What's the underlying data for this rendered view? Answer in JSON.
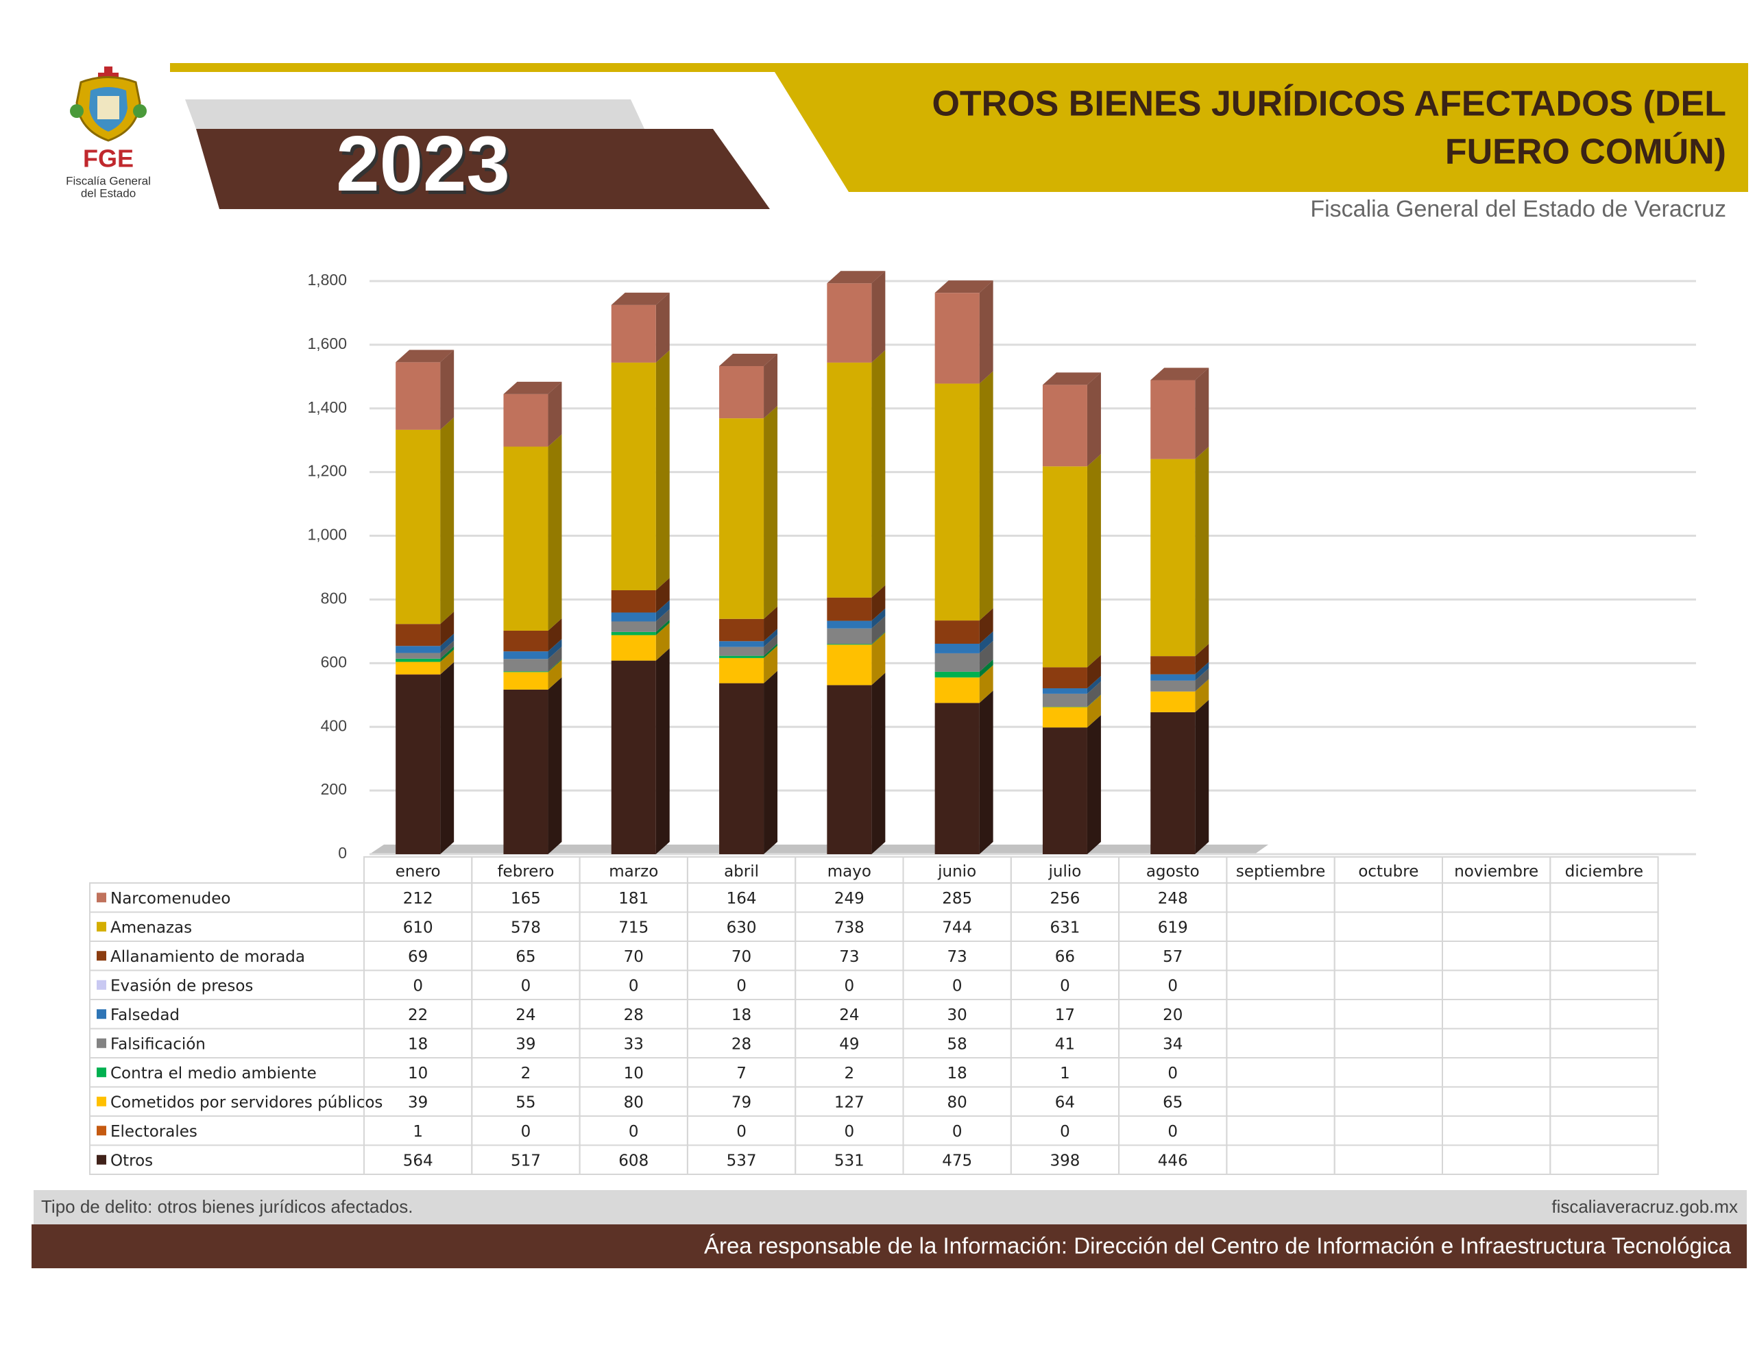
{
  "header": {
    "logo_abbr": "FGE",
    "logo_line1": "Fiscalía General",
    "logo_line2": "del Estado",
    "year": "2023",
    "title_lines": [
      "OTROS BIENES JURÍDICOS AFECTADOS (DEL",
      "FUERO COMÚN)"
    ],
    "subtitle": "Fiscalia General del Estado de Veracruz"
  },
  "chart_data": {
    "type": "bar",
    "stacked": true,
    "categories": [
      "enero",
      "febrero",
      "marzo",
      "abril",
      "mayo",
      "junio",
      "julio",
      "agosto",
      "septiembre",
      "octubre",
      "noviembre",
      "diciembre"
    ],
    "series": [
      {
        "name": "Narcomenudeo",
        "color": "#c0725c",
        "values": [
          212,
          165,
          181,
          164,
          249,
          285,
          256,
          248,
          null,
          null,
          null,
          null
        ]
      },
      {
        "name": "Amenazas",
        "color": "#d4ae00",
        "values": [
          610,
          578,
          715,
          630,
          738,
          744,
          631,
          619,
          null,
          null,
          null,
          null
        ]
      },
      {
        "name": "Allanamiento de morada",
        "color": "#8b3c10",
        "values": [
          69,
          65,
          70,
          70,
          73,
          73,
          66,
          57,
          null,
          null,
          null,
          null
        ]
      },
      {
        "name": "Evasión de presos",
        "color": "#c9c9f2",
        "values": [
          0,
          0,
          0,
          0,
          0,
          0,
          0,
          0,
          null,
          null,
          null,
          null
        ]
      },
      {
        "name": "Falsedad",
        "color": "#2e75b6",
        "values": [
          22,
          24,
          28,
          18,
          24,
          30,
          17,
          20,
          null,
          null,
          null,
          null
        ]
      },
      {
        "name": "Falsificación",
        "color": "#838383",
        "values": [
          18,
          39,
          33,
          28,
          49,
          58,
          41,
          34,
          null,
          null,
          null,
          null
        ]
      },
      {
        "name": "Contra el medio ambiente",
        "color": "#00b050",
        "values": [
          10,
          2,
          10,
          7,
          2,
          18,
          1,
          0,
          null,
          null,
          null,
          null
        ]
      },
      {
        "name": "Cometidos por servidores públicos",
        "color": "#ffc000",
        "values": [
          39,
          55,
          80,
          79,
          127,
          80,
          64,
          65,
          null,
          null,
          null,
          null
        ]
      },
      {
        "name": "Electorales",
        "color": "#c55a11",
        "values": [
          1,
          0,
          0,
          0,
          0,
          0,
          0,
          0,
          null,
          null,
          null,
          null
        ]
      },
      {
        "name": "Otros",
        "color": "#40221a",
        "values": [
          564,
          517,
          608,
          537,
          531,
          475,
          398,
          446,
          null,
          null,
          null,
          null
        ]
      }
    ],
    "ylim": [
      0,
      1800
    ],
    "yticks": [
      0,
      200,
      400,
      600,
      800,
      {
        "value": 1000,
        "label": "1,000"
      },
      {
        "value": 1200,
        "label": "1,200"
      },
      {
        "value": 1400,
        "label": "1,400"
      },
      {
        "value": 1600,
        "label": "1,600"
      },
      {
        "value": 1800,
        "label": "1,800"
      }
    ],
    "grid": true
  },
  "footer": {
    "note": "Tipo de delito: otros bienes jurídicos afectados.",
    "url": "fiscaliaveracruz.gob.mx",
    "responsible": "Área responsable de la Información: Dirección del Centro de Información e Infraestructura Tecnológica"
  }
}
